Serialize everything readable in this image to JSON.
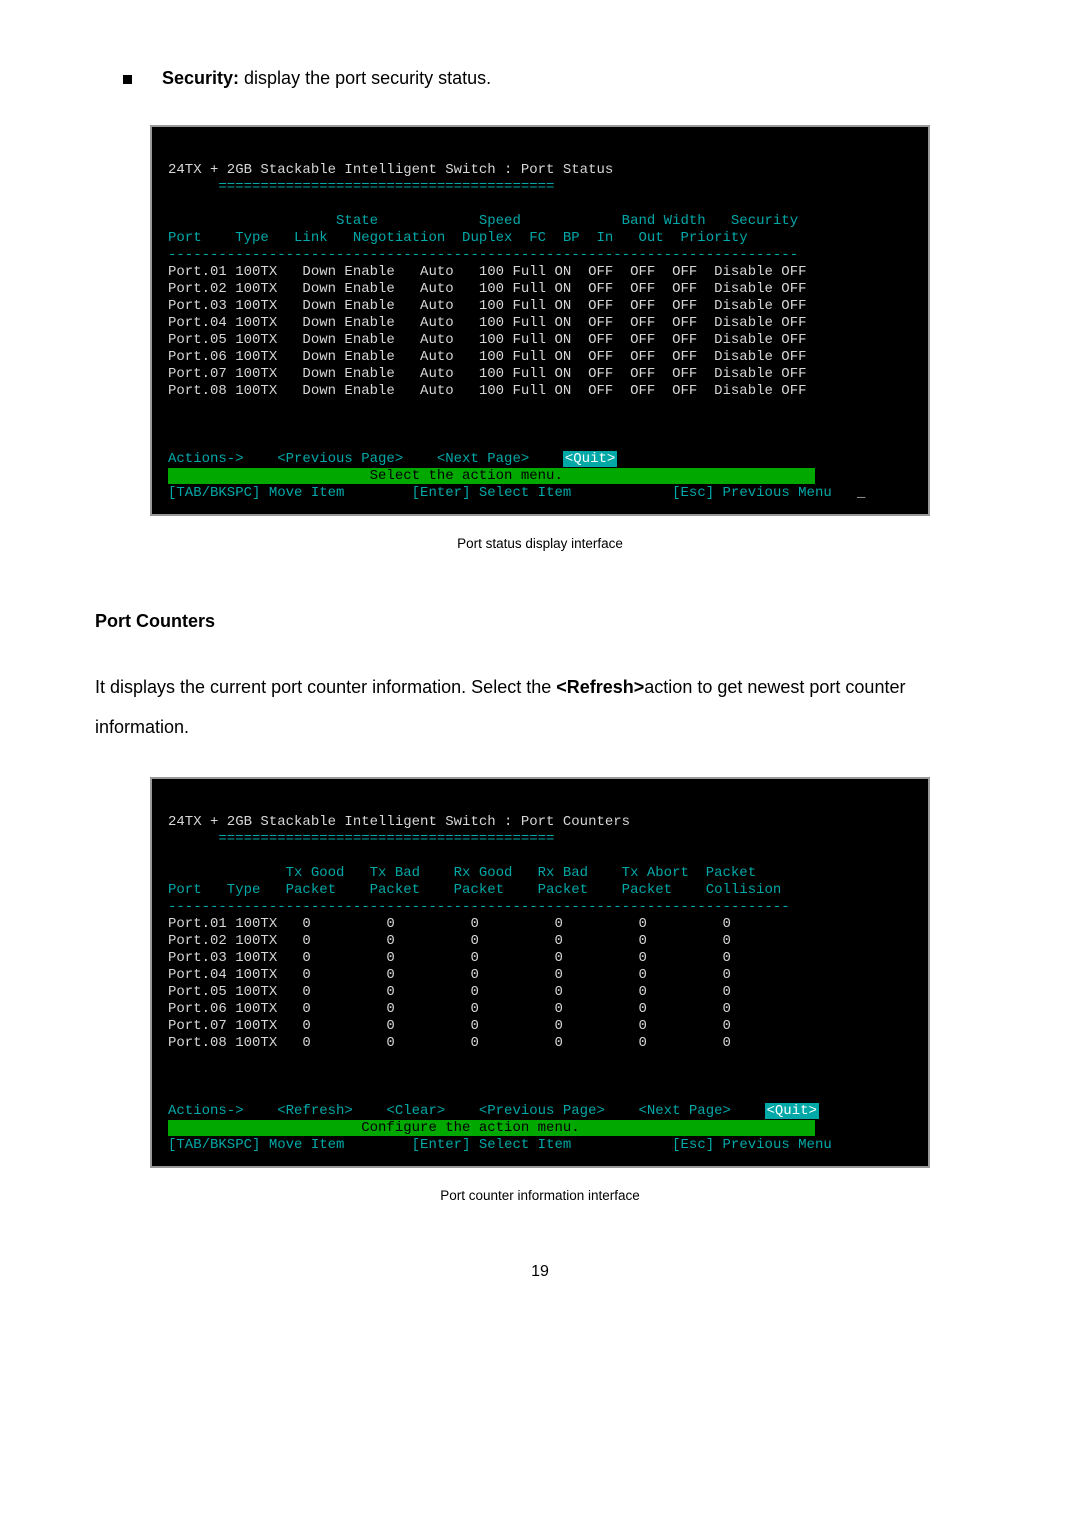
{
  "bullet": {
    "label": "Security:",
    "rest": " display the port security status."
  },
  "term1": {
    "title": "24TX + 2GB Stackable Intelligent Switch : Port Status",
    "hdr1": "                    State            Speed            Band Width   Security",
    "hdr2": "Port    Type   Link   Negotiation  Duplex  FC  BP  In   Out  Priority",
    "sep": "---------------------------------------------------------------------------",
    "rows": [
      "Port.01 100TX   Down Enable   Auto   100 Full ON  OFF  OFF  OFF  Disable OFF",
      "Port.02 100TX   Down Enable   Auto   100 Full ON  OFF  OFF  OFF  Disable OFF",
      "Port.03 100TX   Down Enable   Auto   100 Full ON  OFF  OFF  OFF  Disable OFF",
      "Port.04 100TX   Down Enable   Auto   100 Full ON  OFF  OFF  OFF  Disable OFF",
      "Port.05 100TX   Down Enable   Auto   100 Full ON  OFF  OFF  OFF  Disable OFF",
      "Port.06 100TX   Down Enable   Auto   100 Full ON  OFF  OFF  OFF  Disable OFF",
      "Port.07 100TX   Down Enable   Auto   100 Full ON  OFF  OFF  OFF  Disable OFF",
      "Port.08 100TX   Down Enable   Auto   100 Full ON  OFF  OFF  OFF  Disable OFF"
    ],
    "act_prefix": "Actions->    <Previous Page>    <Next Page>    ",
    "act_quit": "<Quit>",
    "green_bar": "                        Select the action menu.                              ",
    "footer_l": "[TAB/BKSPC] Move Item",
    "footer_m": "[Enter] Select Item",
    "footer_r": "[Esc] Previous Menu"
  },
  "caption1": "Port status display interface",
  "section_title": "Port Counters",
  "para1_a": "It displays the current port counter information. Select the ",
  "para1_b": "<Refresh>",
  "para1_c": "action to get newest port counter information.",
  "term2": {
    "title": "24TX + 2GB Stackable Intelligent Switch : Port Counters",
    "hdr1": "              Tx Good   Tx Bad    Rx Good   Rx Bad    Tx Abort  Packet",
    "hdr2": "Port   Type   Packet    Packet    Packet    Packet    Packet    Collision",
    "sep": "--------------------------------------------------------------------------",
    "rows": [
      "Port.01 100TX   0         0         0         0         0         0",
      "Port.02 100TX   0         0         0         0         0         0",
      "Port.03 100TX   0         0         0         0         0         0",
      "Port.04 100TX   0         0         0         0         0         0",
      "Port.05 100TX   0         0         0         0         0         0",
      "Port.06 100TX   0         0         0         0         0         0",
      "Port.07 100TX   0         0         0         0         0         0",
      "Port.08 100TX   0         0         0         0         0         0"
    ],
    "act_prefix": "Actions->    <Refresh>    <Clear>    <Previous Page>    <Next Page>    ",
    "act_quit": "<Quit>",
    "green_bar": "                       Configure the action menu.                            ",
    "footer_l": "[TAB/BKSPC] Move Item",
    "footer_m": "[Enter] Select Item",
    "footer_r": "[Esc] Previous Menu"
  },
  "caption2": "Port counter information interface",
  "page_no": "19"
}
